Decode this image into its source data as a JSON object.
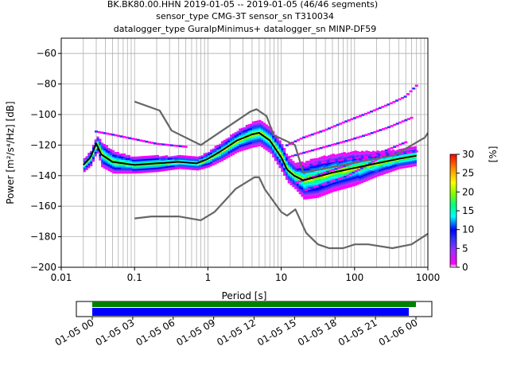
{
  "title": {
    "line1": "BK.BK80.00.HHN   2019-01-05 -- 2019-01-05  (46/46 segments)",
    "line2": "sensor_type CMG-3T sensor_sn T310034",
    "line3": "datalogger_type GuralpMinimus+ datalogger_sn MINP-DF59"
  },
  "colorbar": {
    "label": "[%]",
    "ticks": [
      "0",
      "5",
      "10",
      "15",
      "20",
      "25",
      "30"
    ],
    "min": 0,
    "max": 30
  },
  "timeline": {
    "tick_labels": [
      "01-05 00",
      "01-05 03",
      "01-05 06",
      "01-05 09",
      "01-05 12",
      "01-05 15",
      "01-05 18",
      "01-05 21",
      "01-06 00"
    ],
    "colors": {
      "data_bar": "#0000ff",
      "gap_bar": "#008000"
    }
  },
  "chart_data": {
    "type": "heatmap",
    "xlabel": "Period [s]",
    "ylabel": "Power [m²/s⁴/Hz] [dB]",
    "xscale": "log",
    "xlim": [
      0.01,
      1000
    ],
    "ylim": [
      -200,
      -50
    ],
    "xticks": [
      "0.01",
      "0.1",
      "1",
      "10",
      "100",
      "1000"
    ],
    "yticks": [
      "−200",
      "−180",
      "−160",
      "−140",
      "−120",
      "−100",
      "−80",
      "−60"
    ],
    "grid": true,
    "colors": {
      "noise_model": "#666666",
      "mean": "#000000"
    },
    "series": [
      {
        "role": "new-high-noise-model",
        "x": [
          0.1,
          0.22,
          0.32,
          0.8,
          3.8,
          4.6,
          6.3,
          7.9,
          15.4,
          20,
          354.8,
          912,
          1000
        ],
        "y": [
          -91.5,
          -97.4,
          -110.5,
          -120,
          -98.0,
          -96.5,
          -101.0,
          -113.5,
          -120,
          -138.0,
          -126.5,
          -115,
          -112
        ]
      },
      {
        "role": "new-low-noise-model",
        "x": [
          0.1,
          0.17,
          0.4,
          0.8,
          1.24,
          2.4,
          4.3,
          5.0,
          6.0,
          10.0,
          12.0,
          15.6,
          21.9,
          31.6,
          45,
          70,
          101,
          154,
          328,
          600,
          1000
        ],
        "y": [
          -168,
          -166.7,
          -166.7,
          -169.2,
          -163.7,
          -148.6,
          -141.1,
          -141.1,
          -149.0,
          -163.8,
          -166.2,
          -162.1,
          -177.5,
          -185.0,
          -187.5,
          -187.5,
          -185.0,
          -185.0,
          -187.5,
          -185.0,
          -178
        ]
      },
      {
        "role": "mean",
        "x": [
          0.02,
          0.025,
          0.03,
          0.035,
          0.05,
          0.1,
          0.2,
          0.4,
          0.7,
          1.0,
          1.5,
          2.5,
          4.0,
          5.0,
          7.0,
          10,
          12,
          15,
          20,
          30,
          50,
          100,
          200,
          400,
          700
        ],
        "y": [
          -133,
          -128,
          -119,
          -126,
          -131,
          -133,
          -132,
          -131,
          -132,
          -129,
          -124,
          -117,
          -113,
          -112,
          -117,
          -128,
          -136,
          -140,
          -143,
          -141,
          -138,
          -135,
          -132,
          -129,
          -127
        ]
      }
    ],
    "density": [
      {
        "x": [
          0.02,
          0.025,
          0.03,
          0.035,
          0.05,
          0.1,
          0.2,
          0.4,
          0.7,
          1.0,
          1.5,
          2.5,
          4.0,
          5.0,
          7.0,
          10,
          12,
          15,
          20,
          30,
          50,
          100,
          200,
          400,
          700
        ],
        "y": [
          -133,
          -128,
          -119,
          -126,
          -131,
          -133,
          -132,
          -131,
          -132,
          -129,
          -124,
          -117,
          -113,
          -112,
          -117,
          -128,
          -136,
          -140,
          -143,
          -141,
          -138,
          -135,
          -132,
          -129,
          -127
        ],
        "spread": [
          4,
          5,
          5,
          8,
          7,
          5,
          5,
          4,
          4,
          5,
          6,
          7,
          8,
          8,
          8,
          9,
          8,
          8,
          12,
          13,
          12,
          11,
          8,
          6,
          6
        ]
      }
    ],
    "outliers": [
      {
        "x": [
          12,
          20,
          40,
          80,
          150,
          300,
          500,
          700
        ],
        "y": [
          -120,
          -115,
          -110,
          -104,
          -99,
          -93,
          -88,
          -81
        ]
      },
      {
        "x": [
          12,
          20,
          40,
          80,
          150,
          300,
          600
        ],
        "y": [
          -128,
          -125,
          -121,
          -117,
          -113,
          -108,
          -102
        ]
      },
      {
        "x": [
          15,
          30,
          60,
          120,
          250,
          500,
          700
        ],
        "y": [
          -135,
          -132,
          -130,
          -128,
          -126,
          -125,
          -124
        ]
      },
      {
        "x": [
          15,
          30,
          60,
          120,
          250,
          500
        ],
        "y": [
          -145,
          -140,
          -135,
          -130,
          -124,
          -118
        ]
      },
      {
        "x": [
          20,
          40,
          80,
          150,
          300
        ],
        "y": [
          -150,
          -145,
          -140,
          -133,
          -124
        ]
      },
      {
        "x": [
          0.03,
          0.05,
          0.1,
          0.2,
          0.5
        ],
        "y": [
          -111,
          -113,
          -116,
          -119,
          -121
        ]
      }
    ]
  }
}
